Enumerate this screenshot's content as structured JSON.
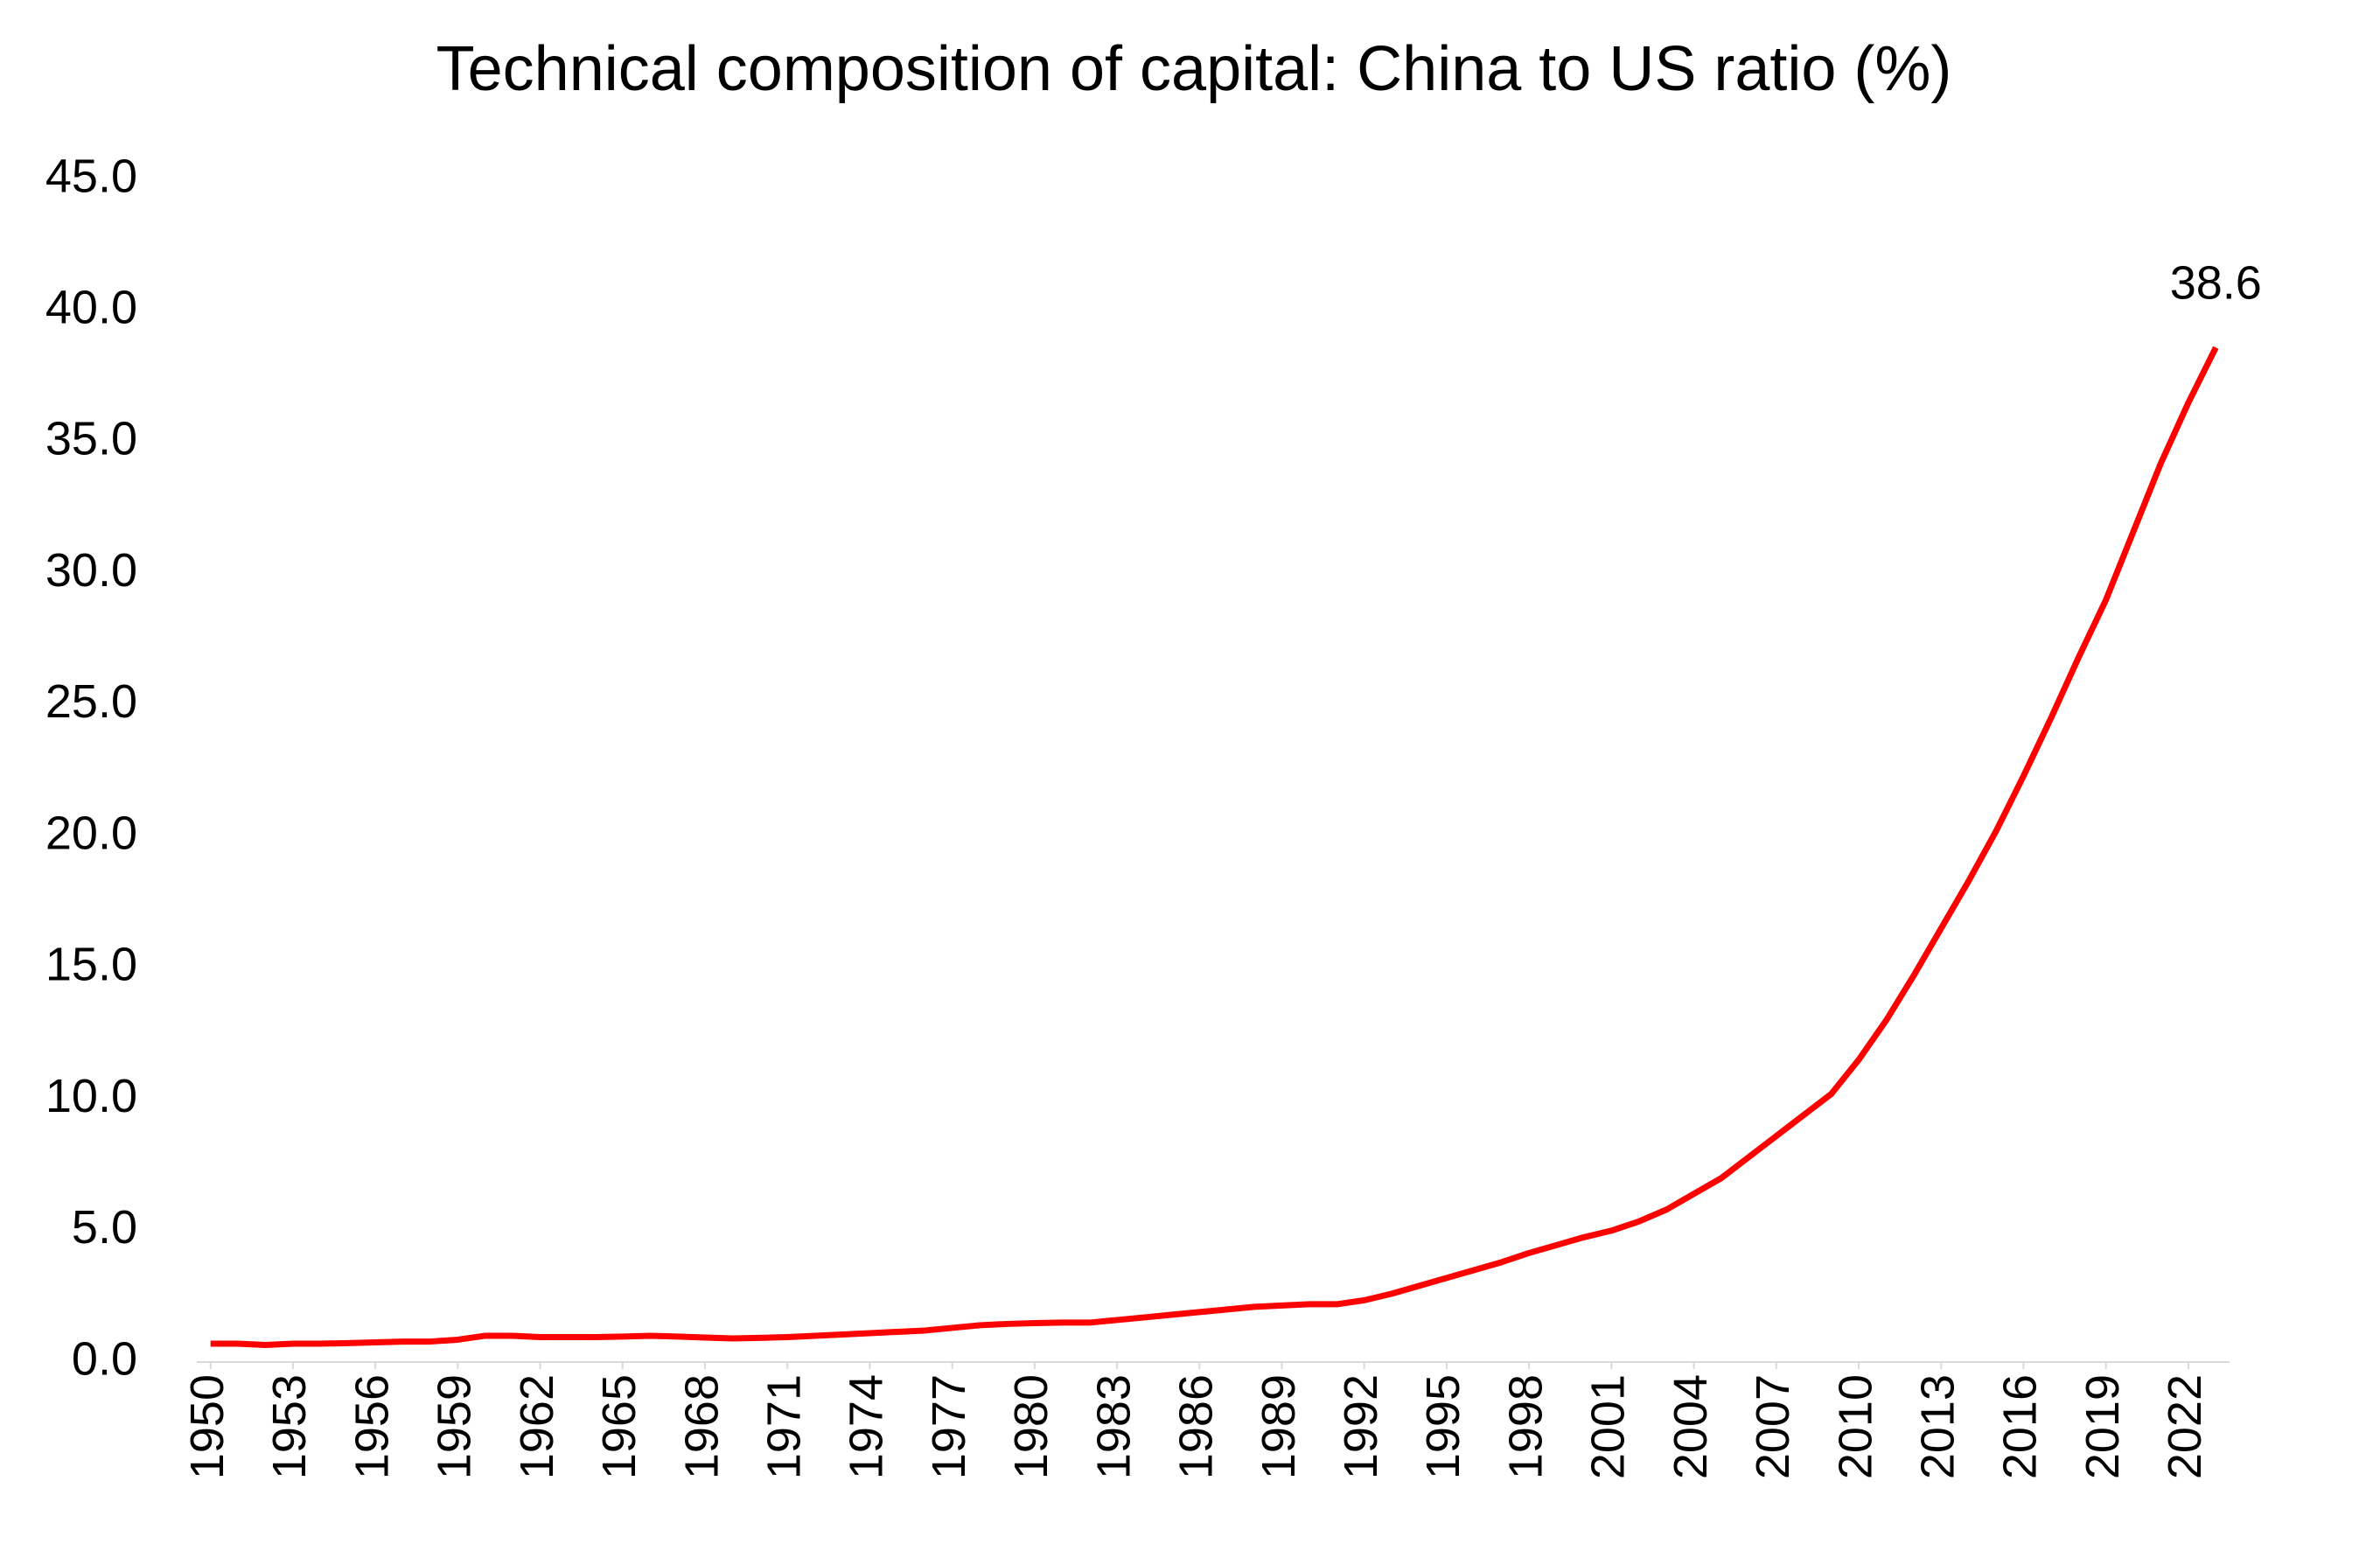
{
  "chart_data": {
    "type": "line",
    "title": "Technical composition of capital: China to US ratio (%)",
    "x": [
      1950,
      1951,
      1952,
      1953,
      1954,
      1955,
      1956,
      1957,
      1958,
      1959,
      1960,
      1961,
      1962,
      1963,
      1964,
      1965,
      1966,
      1967,
      1968,
      1969,
      1970,
      1971,
      1972,
      1973,
      1974,
      1975,
      1976,
      1977,
      1978,
      1979,
      1980,
      1981,
      1982,
      1983,
      1984,
      1985,
      1986,
      1987,
      1988,
      1989,
      1990,
      1991,
      1992,
      1993,
      1994,
      1995,
      1996,
      1997,
      1998,
      1999,
      2000,
      2001,
      2002,
      2003,
      2004,
      2005,
      2006,
      2007,
      2008,
      2009,
      2010,
      2011,
      2012,
      2013,
      2014,
      2015,
      2016,
      2017,
      2018,
      2019,
      2020,
      2021,
      2022,
      2023
    ],
    "values": [
      0.7,
      0.7,
      0.65,
      0.7,
      0.7,
      0.72,
      0.75,
      0.78,
      0.78,
      0.85,
      1.0,
      1.0,
      0.95,
      0.95,
      0.95,
      0.97,
      1.0,
      0.97,
      0.93,
      0.9,
      0.92,
      0.95,
      1.0,
      1.05,
      1.1,
      1.15,
      1.2,
      1.3,
      1.4,
      1.45,
      1.48,
      1.5,
      1.5,
      1.6,
      1.7,
      1.8,
      1.9,
      2.0,
      2.1,
      2.15,
      2.2,
      2.2,
      2.35,
      2.6,
      2.9,
      3.2,
      3.5,
      3.8,
      4.15,
      4.45,
      4.75,
      5.0,
      5.35,
      5.8,
      6.4,
      7.0,
      7.8,
      8.6,
      9.4,
      10.2,
      11.5,
      13.0,
      14.7,
      16.5,
      18.3,
      20.2,
      22.3,
      24.5,
      26.8,
      29.0,
      31.6,
      34.2,
      36.5,
      38.6
    ],
    "value_labels": [
      null,
      null,
      null,
      null,
      null,
      null,
      null,
      null,
      null,
      null,
      null,
      null,
      null,
      null,
      null,
      null,
      null,
      null,
      null,
      null,
      null,
      null,
      null,
      null,
      null,
      null,
      null,
      null,
      null,
      null,
      null,
      null,
      null,
      null,
      null,
      null,
      null,
      null,
      null,
      null,
      null,
      null,
      null,
      null,
      null,
      null,
      null,
      null,
      null,
      null,
      null,
      null,
      null,
      null,
      null,
      null,
      null,
      null,
      null,
      null,
      null,
      null,
      null,
      null,
      null,
      null,
      null,
      null,
      null,
      null,
      null,
      null,
      null,
      "38.6"
    ],
    "color": "#ff0000",
    "xlim": [
      1949.5,
      2023.5
    ],
    "xticks": [
      1950,
      1953,
      1956,
      1959,
      1962,
      1965,
      1968,
      1971,
      1974,
      1977,
      1980,
      1983,
      1986,
      1989,
      1992,
      1995,
      1998,
      2001,
      2004,
      2007,
      2010,
      2013,
      2016,
      2019,
      2022
    ],
    "ylim": [
      0,
      45
    ],
    "yticks": [
      {
        "value": 0,
        "label": "0.0"
      },
      {
        "value": 5,
        "label": "5.0"
      },
      {
        "value": 10,
        "label": "10.0"
      },
      {
        "value": 15,
        "label": "15.0"
      },
      {
        "value": 20,
        "label": "20.0"
      },
      {
        "value": 25,
        "label": "25.0"
      },
      {
        "value": 30,
        "label": "30.0"
      },
      {
        "value": 35,
        "label": "35.0"
      },
      {
        "value": 40,
        "label": "40.0"
      },
      {
        "value": 45,
        "label": "45.0"
      }
    ],
    "grid": false
  }
}
